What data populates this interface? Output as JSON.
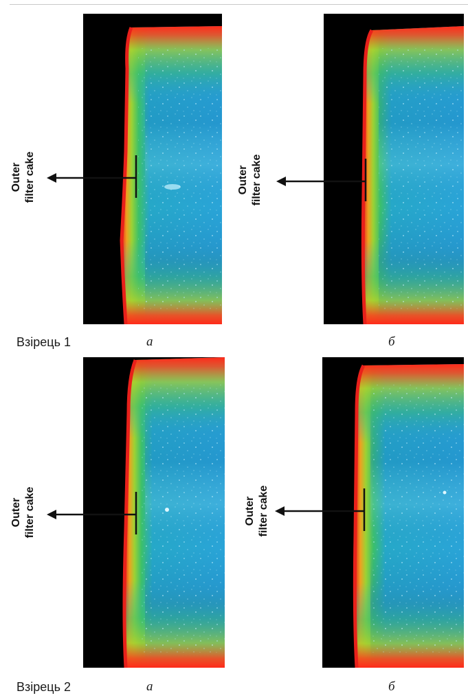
{
  "figure": {
    "annotation": {
      "line1": "Outer",
      "line2": "filter cake"
    },
    "rows": [
      {
        "sample_label": "Взірець 1",
        "panels": [
          {
            "letter": "а",
            "image_desc": "thermal-scan-left"
          },
          {
            "letter": "б",
            "image_desc": "thermal-scan-right"
          }
        ]
      },
      {
        "sample_label": "Взірець 2",
        "panels": [
          {
            "letter": "а",
            "image_desc": "thermal-scan-left"
          },
          {
            "letter": "б",
            "image_desc": "thermal-scan-right"
          }
        ]
      }
    ],
    "colors": {
      "background_dark": "#000000",
      "edge_red": "#e2231a",
      "mid_green": "#5cc24a",
      "core_blue": "#2ba3d6",
      "speckle": "#a8e4f4"
    }
  }
}
